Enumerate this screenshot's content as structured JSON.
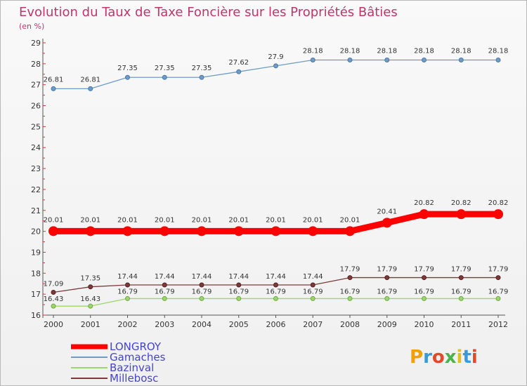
{
  "chart_data": {
    "type": "line",
    "title": "Evolution du Taux de Taxe Foncière sur les Propriétés Bâties",
    "subtitle": "(en %)",
    "x": [
      "2000",
      "2001",
      "2002",
      "2003",
      "2004",
      "2005",
      "2006",
      "2007",
      "2008",
      "2009",
      "2010",
      "2011",
      "2012"
    ],
    "y_ticks": [
      "16",
      "17",
      "18",
      "19",
      "20",
      "21",
      "22",
      "23",
      "24",
      "25",
      "26",
      "27",
      "28",
      "29"
    ],
    "ylim": [
      16,
      29
    ],
    "grid": false,
    "legend_position": "bottom-left",
    "series": [
      {
        "name": "LONGROY",
        "color": "#ff0000",
        "label_color": "#4444cc",
        "values": [
          20.01,
          20.01,
          20.01,
          20.01,
          20.01,
          20.01,
          20.01,
          20.01,
          20.01,
          20.41,
          20.82,
          20.82,
          20.82
        ],
        "labels": [
          "20.01",
          "20.01",
          "20.01",
          "20.01",
          "20.01",
          "20.01",
          "20.01",
          "20.01",
          "20.01",
          "20.41",
          "20.82",
          "20.82",
          "20.82"
        ]
      },
      {
        "name": "Gamaches",
        "color": "#6f9cc6",
        "label_color": "#4444cc",
        "values": [
          26.81,
          26.81,
          27.35,
          27.35,
          27.35,
          27.62,
          27.9,
          28.18,
          28.18,
          28.18,
          28.18,
          28.18,
          28.18
        ],
        "labels": [
          "26.81",
          "26.81",
          "27.35",
          "27.35",
          "27.35",
          "27.62",
          "27.9",
          "28.18",
          "28.18",
          "28.18",
          "28.18",
          "28.18",
          "28.18"
        ]
      },
      {
        "name": "Bazinval",
        "color": "#9bd56b",
        "label_color": "#4444cc",
        "values": [
          16.43,
          16.43,
          16.79,
          16.79,
          16.79,
          16.79,
          16.79,
          16.79,
          16.79,
          16.79,
          16.79,
          16.79,
          16.79
        ],
        "labels": [
          "16.43",
          "16.43",
          "16.79",
          "16.79",
          "16.79",
          "16.79",
          "16.79",
          "16.79",
          "16.79",
          "16.79",
          "16.79",
          "16.79",
          "16.79"
        ]
      },
      {
        "name": "Millebosc",
        "color": "#7a3a3a",
        "label_color": "#4444cc",
        "values": [
          17.09,
          17.35,
          17.44,
          17.44,
          17.44,
          17.44,
          17.44,
          17.44,
          17.79,
          17.79,
          17.79,
          17.79,
          17.79
        ],
        "labels": [
          "17.09",
          "17.35",
          "17.44",
          "17.44",
          "17.44",
          "17.44",
          "17.44",
          "17.44",
          "17.79",
          "17.79",
          "17.79",
          "17.79",
          "17.79"
        ]
      }
    ]
  },
  "logo": {
    "text": "Proxiti"
  }
}
